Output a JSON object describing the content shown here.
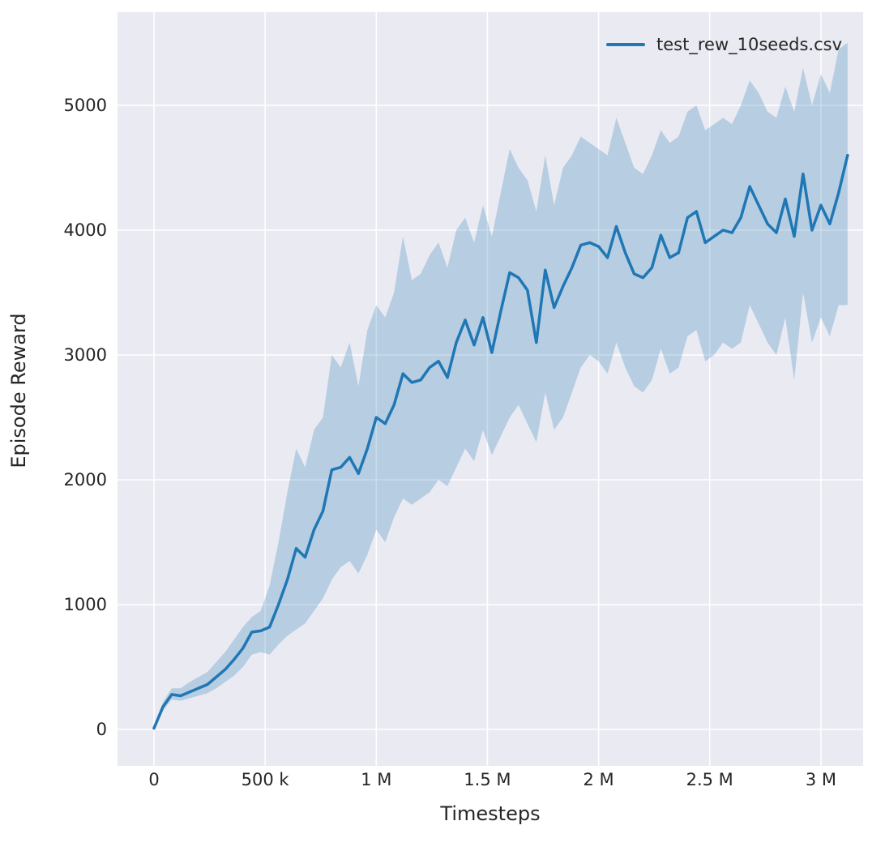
{
  "figure": {
    "background": "#ffffff",
    "axes_background": "#eaeaf2",
    "grid_color": "#ffffff",
    "text_color": "#262626"
  },
  "chart_data": {
    "type": "line",
    "title": "",
    "xlabel": "Timesteps",
    "ylabel": "Episode Reward",
    "grid": true,
    "legend_position": "upper right",
    "xlim": [
      -164000,
      3190000
    ],
    "ylim": [
      -292,
      5747
    ],
    "x_ticks": {
      "values": [
        0,
        500000,
        1000000,
        1500000,
        2000000,
        2500000,
        3000000
      ],
      "labels": [
        "0",
        "500 k",
        "1 M",
        "1.5 M",
        "2 M",
        "2.5 M",
        "3 M"
      ]
    },
    "y_ticks": {
      "values": [
        0,
        1000,
        2000,
        3000,
        4000,
        5000
      ],
      "labels": [
        "0",
        "1000",
        "2000",
        "3000",
        "4000",
        "5000"
      ]
    },
    "series": [
      {
        "name": "test_rew_10seeds.csv",
        "color": "#1f77b4",
        "band_color": "#1f77b4",
        "band_alpha": 0.25,
        "x": [
          0,
          40000,
          80000,
          120000,
          160000,
          200000,
          240000,
          280000,
          320000,
          360000,
          400000,
          440000,
          480000,
          520000,
          560000,
          600000,
          640000,
          680000,
          720000,
          760000,
          800000,
          840000,
          880000,
          920000,
          960000,
          1000000,
          1040000,
          1080000,
          1120000,
          1160000,
          1200000,
          1240000,
          1280000,
          1320000,
          1360000,
          1400000,
          1440000,
          1480000,
          1520000,
          1560000,
          1600000,
          1640000,
          1680000,
          1720000,
          1760000,
          1800000,
          1840000,
          1880000,
          1920000,
          1960000,
          2000000,
          2040000,
          2080000,
          2120000,
          2160000,
          2200000,
          2240000,
          2280000,
          2320000,
          2360000,
          2400000,
          2440000,
          2480000,
          2520000,
          2560000,
          2600000,
          2640000,
          2680000,
          2720000,
          2760000,
          2800000,
          2840000,
          2880000,
          2920000,
          2960000,
          3000000,
          3040000,
          3080000,
          3120000
        ],
        "mean": [
          10,
          180,
          280,
          270,
          300,
          330,
          360,
          420,
          480,
          560,
          650,
          780,
          790,
          820,
          1000,
          1200,
          1450,
          1380,
          1600,
          1750,
          2080,
          2100,
          2180,
          2050,
          2250,
          2500,
          2450,
          2600,
          2850,
          2780,
          2800,
          2900,
          2950,
          2820,
          3100,
          3280,
          3080,
          3300,
          3020,
          3350,
          3660,
          3620,
          3520,
          3100,
          3680,
          3380,
          3550,
          3700,
          3880,
          3900,
          3870,
          3780,
          4030,
          3820,
          3650,
          3620,
          3700,
          3960,
          3780,
          3820,
          4100,
          4150,
          3900,
          3950,
          4000,
          3980,
          4100,
          4350,
          4200,
          4050,
          3980,
          4250,
          3950,
          4450,
          4000,
          4200,
          4050,
          4300,
          4600
        ],
        "band_low": [
          0,
          150,
          240,
          230,
          250,
          270,
          290,
          330,
          380,
          430,
          500,
          600,
          620,
          600,
          680,
          750,
          800,
          850,
          950,
          1050,
          1200,
          1300,
          1350,
          1250,
          1400,
          1600,
          1500,
          1700,
          1850,
          1800,
          1850,
          1900,
          2000,
          1950,
          2100,
          2250,
          2150,
          2400,
          2200,
          2350,
          2500,
          2600,
          2450,
          2300,
          2700,
          2400,
          2500,
          2700,
          2900,
          3000,
          2950,
          2850,
          3100,
          2900,
          2750,
          2700,
          2800,
          3050,
          2850,
          2900,
          3150,
          3200,
          2950,
          3000,
          3100,
          3050,
          3100,
          3400,
          3250,
          3100,
          3000,
          3300,
          2800,
          3500,
          3100,
          3300,
          3150,
          3400,
          3400
        ],
        "band_high": [
          30,
          220,
          330,
          330,
          380,
          420,
          460,
          540,
          620,
          720,
          820,
          900,
          950,
          1150,
          1500,
          1900,
          2250,
          2100,
          2400,
          2500,
          3000,
          2900,
          3100,
          2750,
          3200,
          3400,
          3300,
          3500,
          3950,
          3600,
          3650,
          3800,
          3900,
          3700,
          4000,
          4100,
          3900,
          4200,
          3950,
          4300,
          4650,
          4500,
          4400,
          4150,
          4600,
          4200,
          4500,
          4600,
          4750,
          4700,
          4650,
          4600,
          4900,
          4700,
          4500,
          4450,
          4600,
          4800,
          4700,
          4750,
          4950,
          5000,
          4800,
          4850,
          4900,
          4850,
          5000,
          5200,
          5100,
          4950,
          4900,
          5150,
          4950,
          5300,
          5000,
          5250,
          5100,
          5450,
          5500
        ]
      }
    ]
  }
}
